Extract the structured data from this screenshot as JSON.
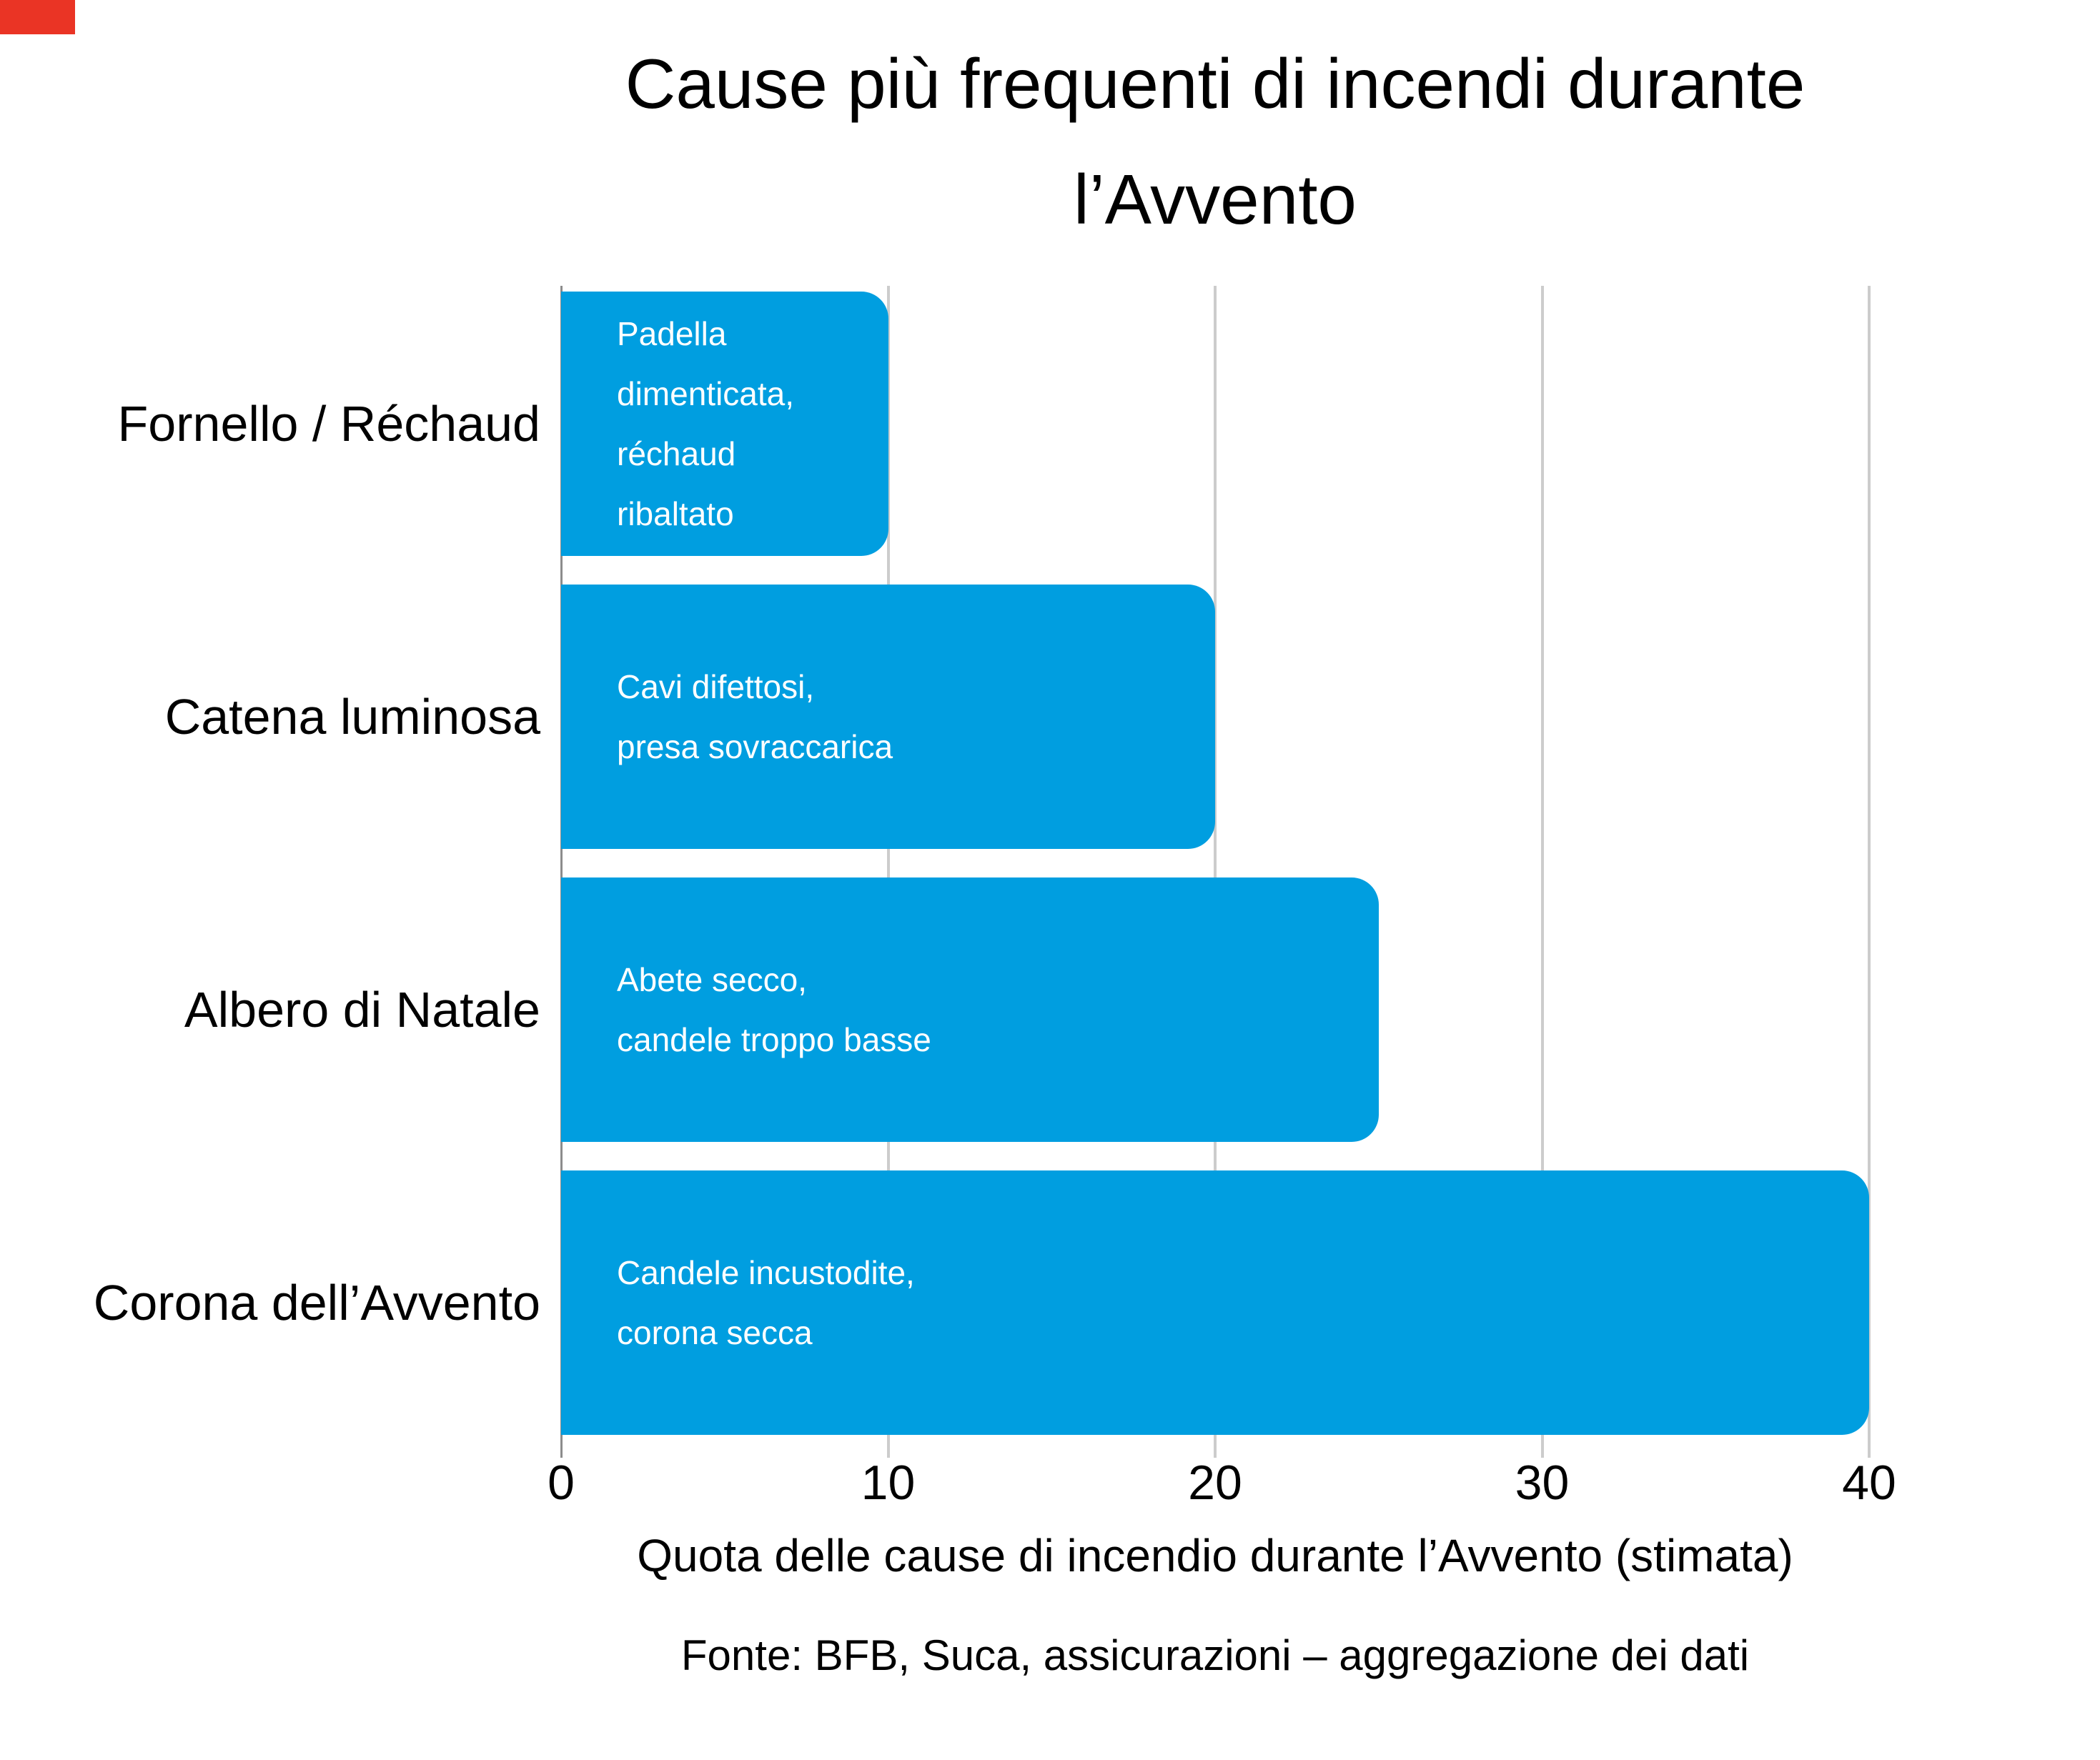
{
  "marker": {
    "color": "#ea3425"
  },
  "chart_data": {
    "type": "bar",
    "orientation": "horizontal",
    "title": "Cause più frequenti di incendi durante l’Avvento",
    "title_lines": [
      "Cause più frequenti di incendi durante",
      "l’Avvento"
    ],
    "xlabel": "Quota delle cause di incendio durante l’Avvento (stimata)",
    "source": "Fonte: BFB, Suca, assicurazioni – aggregazione dei dati",
    "xlim": [
      0,
      40
    ],
    "x_ticks": [
      0,
      10,
      20,
      30,
      40
    ],
    "grid": "vertical-light-gray",
    "legend": "none",
    "bar_color": "#009ee0",
    "grid_color": "#cccccc",
    "axis_line_color": "#8c8c8c",
    "bar_text_color": "#ffffff",
    "categories": [
      "Fornello / Réchaud",
      "Catena luminosa",
      "Albero di Natale",
      "Corona dell’Avvento"
    ],
    "values": [
      10,
      20,
      25,
      40
    ],
    "bars": [
      {
        "category": "Fornello / Réchaud",
        "value": 10,
        "note_lines": [
          "Padella",
          "dimenticata,",
          "réchaud",
          "ribaltato"
        ]
      },
      {
        "category": "Catena luminosa",
        "value": 20,
        "note_lines": [
          "Cavi difettosi,",
          "presa sovraccarica"
        ]
      },
      {
        "category": "Albero di Natale",
        "value": 25,
        "note_lines": [
          "Abete secco,",
          "candele troppo basse"
        ]
      },
      {
        "category": "Corona dell’Avvento",
        "value": 40,
        "note_lines": [
          "Candele incustodite,",
          "corona secca"
        ]
      }
    ]
  }
}
